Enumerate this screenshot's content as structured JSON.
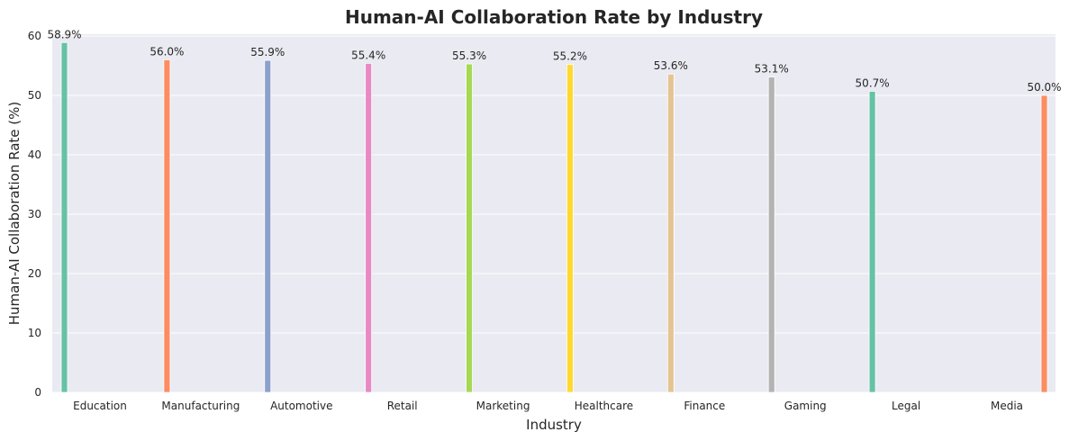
{
  "chart_data": {
    "type": "bar",
    "title": "Human-AI Collaboration Rate by Industry",
    "xlabel": "Industry",
    "ylabel": "Human-AI Collaboration Rate (%)",
    "ylim": [
      0,
      60
    ],
    "yticks": [
      0,
      10,
      20,
      30,
      40,
      50,
      60
    ],
    "grid": true,
    "categories": [
      "Education",
      "Manufacturing",
      "Automotive",
      "Retail",
      "Marketing",
      "Healthcare",
      "Finance",
      "Gaming",
      "Legal",
      "Media"
    ],
    "values": [
      58.9,
      56.0,
      55.9,
      55.4,
      55.3,
      55.2,
      53.6,
      53.1,
      50.7,
      50.0
    ],
    "data_labels": [
      "58.9%",
      "56.0%",
      "55.9%",
      "55.4%",
      "55.3%",
      "55.2%",
      "53.6%",
      "53.1%",
      "50.7%",
      "50.0%"
    ],
    "colors": [
      "#66c2a5",
      "#fc8d62",
      "#8da0cb",
      "#e78ac3",
      "#a6d854",
      "#ffd92f",
      "#e5c494",
      "#b3b3b3",
      "#66c2a5",
      "#fc8d62"
    ],
    "background": "#eaeaf2"
  }
}
